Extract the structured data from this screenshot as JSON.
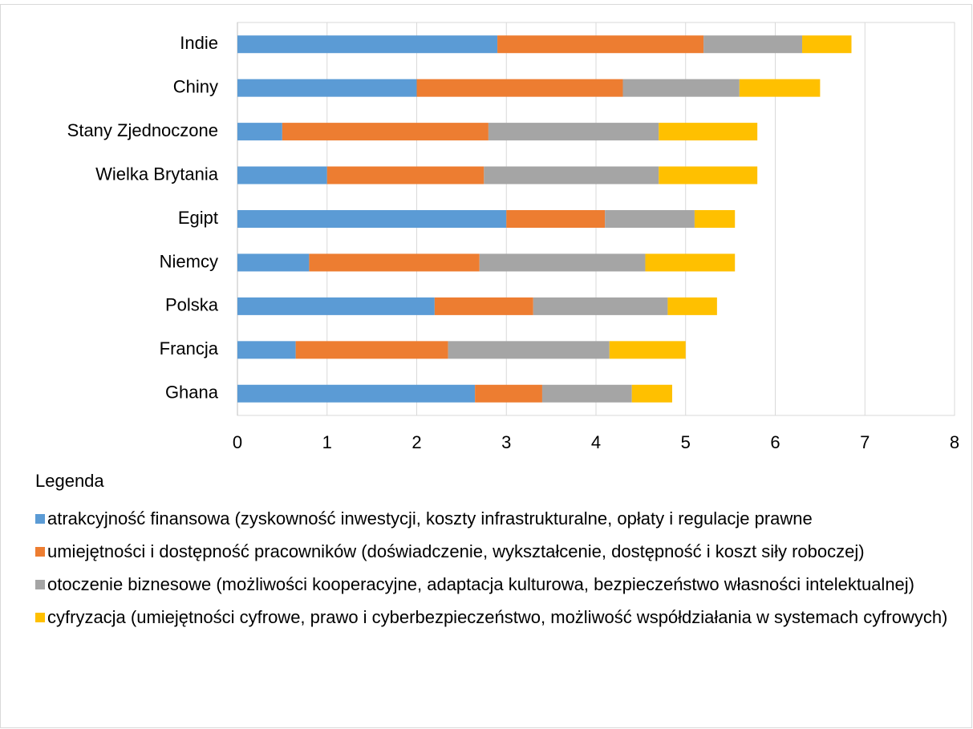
{
  "chart_data": {
    "type": "stacked-barh",
    "categories": [
      "Indie",
      "Chiny",
      "Stany Zjednoczone",
      "Wielka Brytania",
      "Egipt",
      "Niemcy",
      "Polska",
      "Francja",
      "Ghana"
    ],
    "series": [
      {
        "name": "atrakcyjność finansowa (zyskowność inwestycji, koszty infrastrukturalne, opłaty i regulacje prawne",
        "color": "#5b9bd5",
        "values": [
          2.9,
          2.0,
          0.5,
          1.0,
          3.0,
          0.8,
          2.2,
          0.65,
          2.65
        ]
      },
      {
        "name": "umiejętności i dostępność pracowników (doświadczenie, wykształcenie, dostępność i koszt siły roboczej)",
        "color": "#ed7d31",
        "values": [
          2.3,
          2.3,
          2.3,
          1.75,
          1.1,
          1.9,
          1.1,
          1.7,
          0.75
        ]
      },
      {
        "name": "otoczenie biznesowe (możliwości kooperacyjne, adaptacja kulturowa, bezpieczeństwo własności intelektualnej)",
        "color": "#a5a5a5",
        "values": [
          1.1,
          1.3,
          1.9,
          1.95,
          1.0,
          1.85,
          1.5,
          1.8,
          1.0
        ]
      },
      {
        "name": "cyfryzacja (umiejętności cyfrowe, prawo i cyberbezpieczeństwo, możliwość współdziałania w systemach cyfrowych)",
        "color": "#ffc000",
        "values": [
          0.55,
          0.9,
          1.1,
          1.1,
          0.45,
          1.0,
          0.55,
          0.85,
          0.45
        ]
      }
    ],
    "xlim": [
      0,
      8
    ],
    "xticks": [
      0,
      1,
      2,
      3,
      4,
      5,
      6,
      7,
      8
    ],
    "grid": true,
    "legend_title": "Legenda",
    "legend_position": "bottom"
  }
}
